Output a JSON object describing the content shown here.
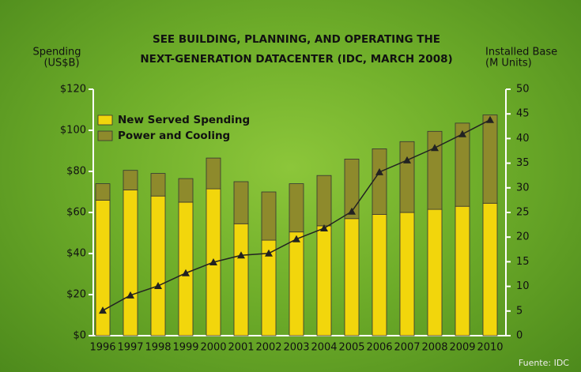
{
  "chart_data": {
    "type": "bar",
    "stacked": true,
    "title": [
      "SEE BUILDING, PLANNING, AND OPERATING THE",
      "NEXT-GENERATION DATACENTER (IDC, MARCH 2008)"
    ],
    "ylabel": [
      "Spending",
      "(US$B)"
    ],
    "y2label": [
      "Installed Base",
      "(M Units)"
    ],
    "source": "Fuente: IDC",
    "categories": [
      "1996",
      "1997",
      "1998",
      "1999",
      "2000",
      "2001",
      "2002",
      "2003",
      "2004",
      "2005",
      "2006",
      "2007",
      "2008",
      "2009",
      "2010"
    ],
    "series": [
      {
        "name": "New Served Spending",
        "color": "#f2d60c",
        "values": [
          66,
          71,
          68,
          65,
          71.5,
          54.5,
          46.5,
          50.5,
          53.5,
          57,
          59,
          60,
          61.5,
          63,
          64.5
        ]
      },
      {
        "name": "Power and Cooling",
        "color": "#8e8a2c",
        "values": [
          8,
          9.5,
          11,
          11.5,
          15,
          20.5,
          23.5,
          23.5,
          24.5,
          29,
          32,
          34.5,
          38,
          40.5,
          43
        ]
      },
      {
        "type": "line",
        "axis": "y2",
        "color": "#222222",
        "values": [
          5.1,
          8.2,
          10.1,
          12.7,
          14.9,
          16.3,
          16.7,
          19.6,
          21.8,
          25.2,
          33.2,
          35.6,
          38.1,
          40.9,
          43.8
        ]
      }
    ],
    "ylim": [
      0,
      120
    ],
    "yticks": [
      {
        "value": 0,
        "label": "$0"
      },
      {
        "value": 20,
        "label": "$20"
      },
      {
        "value": 40,
        "label": "$40"
      },
      {
        "value": 60,
        "label": "$60"
      },
      {
        "value": 80,
        "label": "$80"
      },
      {
        "value": 100,
        "label": "$100"
      },
      {
        "value": 120,
        "label": "$120"
      }
    ],
    "y2lim": [
      0,
      50
    ],
    "y2ticks": [
      0,
      5,
      10,
      15,
      20,
      25,
      30,
      35,
      40,
      45,
      50
    ],
    "legend": "upper left"
  }
}
